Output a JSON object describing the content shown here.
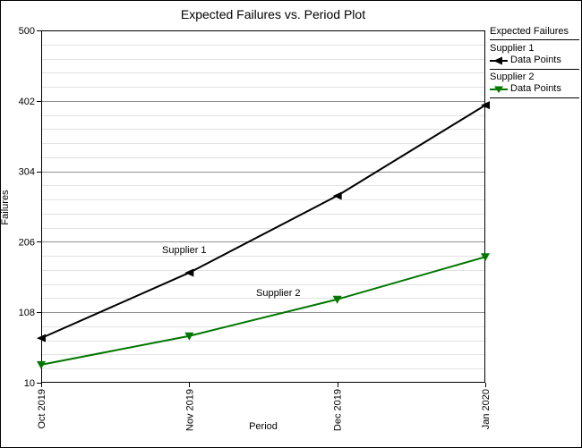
{
  "chart_data": {
    "type": "line",
    "title": "Expected Failures vs. Period Plot",
    "xlabel": "Period",
    "ylabel": "Failures",
    "categories": [
      "Oct 2019",
      "Nov 2019",
      "Dec 2019",
      "Jan 2020"
    ],
    "yticks": [
      10,
      108,
      206,
      304,
      402,
      500
    ],
    "ylim": [
      10,
      500
    ],
    "minor_step": 19.6,
    "grid": "horizontal-major-and-minor",
    "legend": {
      "title": "Expected Failures",
      "entry_label": "Data Points",
      "position": "top-right"
    },
    "series": [
      {
        "name": "Supplier 1",
        "color": "#000000",
        "marker": "triangle-left",
        "values": [
          72,
          163,
          270,
          396
        ]
      },
      {
        "name": "Supplier 2",
        "color": "#007700",
        "marker": "triangle-down",
        "values": [
          35,
          75,
          126,
          185
        ]
      }
    ],
    "annotations": [
      {
        "text": "Supplier 1"
      },
      {
        "text": "Supplier 2"
      }
    ]
  },
  "colors": {
    "background": "#ffffff",
    "axis": "#000000",
    "major_grid": "#909090",
    "minor_grid": "#e2e2e2"
  }
}
